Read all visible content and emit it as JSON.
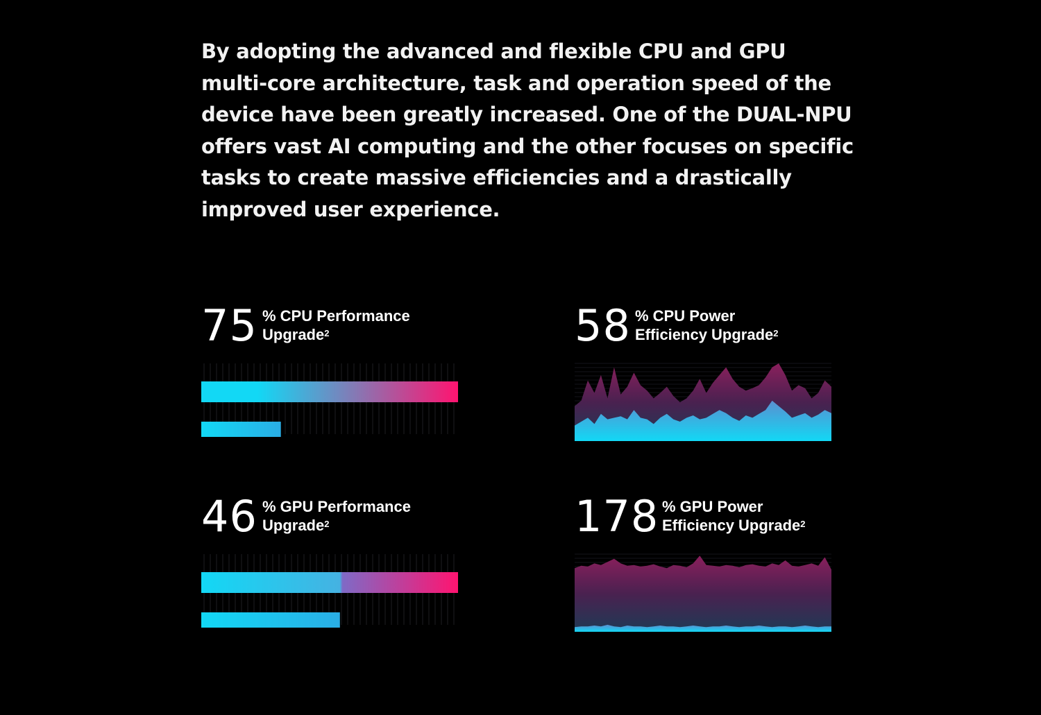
{
  "intro_text": "By adopting the advanced and flexible CPU and GPU multi-core architecture, task and operation speed of the device have been greatly increased. One of the DUAL-NPU offers vast AI computing and the other focuses on specific tasks to create massive efficiencies and a drastically improved user experience.",
  "colors": {
    "background": "#000000",
    "cyan": "#12d8f5",
    "magenta": "#ff1470",
    "purple": "#7b2a63"
  },
  "stats": [
    {
      "number": "75",
      "label_line1": "% CPU Performance",
      "label_line2": "Upgrade",
      "footnote": "2"
    },
    {
      "number": "58",
      "label_line1": "% CPU Power",
      "label_line2": "Efficiency Upgrade",
      "footnote": "2"
    },
    {
      "number": "46",
      "label_line1": "% GPU Performance",
      "label_line2": "Upgrade",
      "footnote": "2"
    },
    {
      "number": "178",
      "label_line1": "% GPU Power",
      "label_line2": "Efficiency Upgrade",
      "footnote": "2"
    }
  ],
  "chart_data": [
    {
      "type": "bar",
      "series": [
        {
          "values": [
            1.0
          ]
        },
        {
          "values": [
            0.31
          ]
        }
      ]
    },
    {
      "type": "area",
      "series": [
        {
          "values": [
            0.45,
            0.52,
            0.78,
            0.62,
            0.85,
            0.55,
            0.95,
            0.6,
            0.7,
            0.88,
            0.72,
            0.65,
            0.55,
            0.62,
            0.7,
            0.58,
            0.5,
            0.55,
            0.65,
            0.8,
            0.62,
            0.75,
            0.85,
            0.95,
            0.8,
            0.7,
            0.65,
            0.68,
            0.72,
            0.82,
            0.95,
            1.0,
            0.85,
            0.65,
            0.72,
            0.68,
            0.55,
            0.62,
            0.78,
            0.7
          ]
        },
        {
          "values": [
            0.2,
            0.25,
            0.3,
            0.22,
            0.35,
            0.28,
            0.3,
            0.32,
            0.28,
            0.4,
            0.3,
            0.28,
            0.22,
            0.3,
            0.35,
            0.28,
            0.25,
            0.3,
            0.33,
            0.28,
            0.3,
            0.35,
            0.4,
            0.36,
            0.3,
            0.26,
            0.33,
            0.3,
            0.35,
            0.4,
            0.52,
            0.45,
            0.38,
            0.3,
            0.33,
            0.36,
            0.3,
            0.34,
            0.4,
            0.36
          ]
        }
      ]
    },
    {
      "type": "bar",
      "series": [
        {
          "values": [
            1.0
          ]
        },
        {
          "values": [
            0.54
          ]
        }
      ]
    },
    {
      "type": "area",
      "series": [
        {
          "values": [
            0.82,
            0.85,
            0.84,
            0.88,
            0.86,
            0.9,
            0.94,
            0.88,
            0.85,
            0.86,
            0.84,
            0.85,
            0.87,
            0.84,
            0.82,
            0.86,
            0.85,
            0.83,
            0.88,
            0.98,
            0.86,
            0.85,
            0.84,
            0.86,
            0.85,
            0.83,
            0.86,
            0.87,
            0.85,
            0.84,
            0.88,
            0.86,
            0.92,
            0.85,
            0.84,
            0.86,
            0.88,
            0.85,
            0.96,
            0.8
          ]
        },
        {
          "values": [
            0.06,
            0.07,
            0.07,
            0.08,
            0.07,
            0.09,
            0.07,
            0.06,
            0.08,
            0.07,
            0.07,
            0.06,
            0.07,
            0.08,
            0.07,
            0.07,
            0.06,
            0.07,
            0.08,
            0.07,
            0.06,
            0.07,
            0.07,
            0.08,
            0.07,
            0.06,
            0.07,
            0.07,
            0.08,
            0.07,
            0.06,
            0.07,
            0.07,
            0.06,
            0.07,
            0.08,
            0.07,
            0.06,
            0.07,
            0.07
          ]
        }
      ]
    }
  ]
}
